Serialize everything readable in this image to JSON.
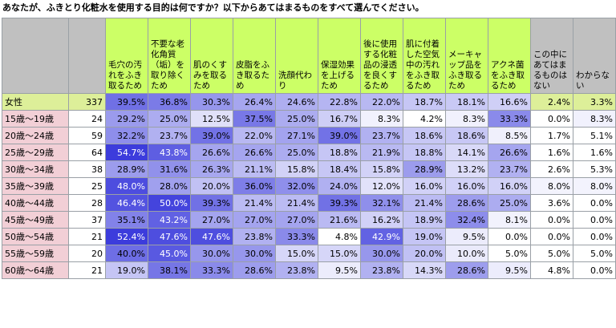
{
  "title": "あなたが、ふきとり化粧水を使用する目的は何ですか？以下からあてはまるものをすべて選んでください。",
  "chart_data": {
    "type": "table",
    "columns": [
      "毛穴の汚れをふき取るため",
      "不要な老化角質（垢）を取り除くため",
      "肌のくすみを取るため",
      "皮脂をふき取るため",
      "洗顔代わり",
      "保湿効果を上げるため",
      "後に使用する化粧品の浸透を良くするため",
      "肌に付着した空気中の汚れをふき取るため",
      "メーキャップ品をふき取るため",
      "アクネ菌をふき取るため",
      "この中にあてはまるものはない",
      "わからない"
    ],
    "rows": [
      {
        "label": "女性",
        "n": 337,
        "values": [
          39.5,
          36.8,
          30.3,
          26.4,
          24.6,
          22.8,
          22.0,
          18.7,
          18.1,
          16.6,
          2.4,
          3.3
        ]
      },
      {
        "label": "15歳～19歳",
        "n": 24,
        "values": [
          29.2,
          25.0,
          12.5,
          37.5,
          25.0,
          16.7,
          8.3,
          4.2,
          8.3,
          33.3,
          0.0,
          8.3
        ]
      },
      {
        "label": "20歳～24歳",
        "n": 59,
        "values": [
          32.2,
          23.7,
          39.0,
          22.0,
          27.1,
          39.0,
          23.7,
          18.6,
          18.6,
          8.5,
          1.7,
          5.1
        ]
      },
      {
        "label": "25歳～29歳",
        "n": 64,
        "values": [
          54.7,
          43.8,
          26.6,
          26.6,
          25.0,
          18.8,
          21.9,
          18.8,
          14.1,
          26.6,
          1.6,
          1.6
        ]
      },
      {
        "label": "30歳～34歳",
        "n": 38,
        "values": [
          28.9,
          31.6,
          26.3,
          21.1,
          15.8,
          18.4,
          15.8,
          28.9,
          13.2,
          23.7,
          2.6,
          5.3
        ]
      },
      {
        "label": "35歳～39歳",
        "n": 25,
        "values": [
          48.0,
          28.0,
          20.0,
          36.0,
          32.0,
          24.0,
          12.0,
          16.0,
          16.0,
          16.0,
          8.0,
          8.0
        ]
      },
      {
        "label": "40歳～44歳",
        "n": 28,
        "values": [
          46.4,
          50.0,
          39.3,
          21.4,
          21.4,
          39.3,
          32.1,
          21.4,
          28.6,
          25.0,
          3.6,
          0.0
        ]
      },
      {
        "label": "45歳～49歳",
        "n": 37,
        "values": [
          35.1,
          43.2,
          27.0,
          27.0,
          27.0,
          21.6,
          16.2,
          18.9,
          32.4,
          8.1,
          0.0,
          0.0
        ]
      },
      {
        "label": "50歳～54歳",
        "n": 21,
        "values": [
          52.4,
          47.6,
          47.6,
          23.8,
          33.3,
          4.8,
          42.9,
          19.0,
          9.5,
          0.0,
          0.0,
          0.0
        ]
      },
      {
        "label": "55歳～59歳",
        "n": 20,
        "values": [
          40.0,
          45.0,
          30.0,
          30.0,
          15.0,
          15.0,
          30.0,
          20.0,
          10.0,
          5.0,
          5.0,
          5.0
        ]
      },
      {
        "label": "60歳～64歳",
        "n": 21,
        "values": [
          19.0,
          38.1,
          33.3,
          28.6,
          23.8,
          9.5,
          23.8,
          14.3,
          28.6,
          9.5,
          4.8,
          0.0
        ]
      }
    ]
  },
  "colors": {
    "header_green": "#ccff66",
    "header_gray": "#c0c0c0",
    "total_row": "#ddef99",
    "age_row_label": "#f2cfd6",
    "heat_low": "#ffffff",
    "heat_high": "#3c3cdc",
    "border": "#9aa0a6"
  }
}
